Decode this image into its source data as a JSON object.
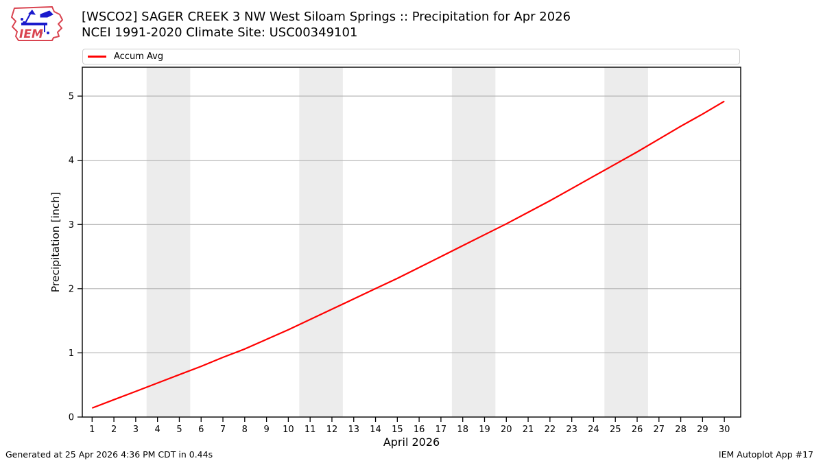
{
  "header": {
    "title_line1": "[WSCO2] SAGER CREEK 3 NW West Siloam Springs :: Precipitation for Apr 2026",
    "title_line2": "NCEI 1991-2020 Climate Site: USC00349101",
    "logo_text": "IEM"
  },
  "legend": {
    "items": [
      {
        "label": "Accum Avg",
        "color": "#ff0000"
      }
    ]
  },
  "footer": {
    "generated": "Generated at 25 Apr 2026 4:36 PM CDT in 0.44s",
    "credit": "IEM Autoplot App #17"
  },
  "colors": {
    "line": "#ff0000",
    "grid": "#b0b0b0",
    "weekend_band": "#ececec",
    "spine": "#000000",
    "tick": "#000000",
    "legend_border": "#cccccc",
    "logo_red": "#d9434f",
    "logo_blue": "#1a1acc"
  },
  "chart_data": {
    "type": "line",
    "title": "[WSCO2] SAGER CREEK 3 NW West Siloam Springs :: Precipitation for Apr 2026",
    "subtitle": "NCEI 1991-2020 Climate Site: USC00349101",
    "xlabel": "April 2026",
    "ylabel": "Precipitation [inch]",
    "x": [
      1,
      2,
      3,
      4,
      5,
      6,
      7,
      8,
      9,
      10,
      11,
      12,
      13,
      14,
      15,
      16,
      17,
      18,
      19,
      20,
      21,
      22,
      23,
      24,
      25,
      26,
      27,
      28,
      29,
      30
    ],
    "series": [
      {
        "name": "Accum Avg",
        "color": "#ff0000",
        "values": [
          0.14,
          0.27,
          0.4,
          0.53,
          0.66,
          0.79,
          0.93,
          1.06,
          1.21,
          1.36,
          1.52,
          1.68,
          1.84,
          2.0,
          2.16,
          2.33,
          2.5,
          2.67,
          2.84,
          3.01,
          3.19,
          3.37,
          3.56,
          3.75,
          3.94,
          4.13,
          4.33,
          4.53,
          4.72,
          4.92
        ]
      }
    ],
    "xlim": [
      0.55,
      30.75
    ],
    "ylim": [
      0,
      5.45
    ],
    "xticks": [
      1,
      2,
      3,
      4,
      5,
      6,
      7,
      8,
      9,
      10,
      11,
      12,
      13,
      14,
      15,
      16,
      17,
      18,
      19,
      20,
      21,
      22,
      23,
      24,
      25,
      26,
      27,
      28,
      29,
      30
    ],
    "yticks": [
      0,
      1,
      2,
      3,
      4,
      5
    ],
    "grid": "horizontal",
    "legend_position": "top",
    "weekend_bands": [
      [
        3.5,
        5.5
      ],
      [
        10.5,
        12.5
      ],
      [
        17.5,
        19.5
      ],
      [
        24.5,
        26.5
      ]
    ]
  }
}
